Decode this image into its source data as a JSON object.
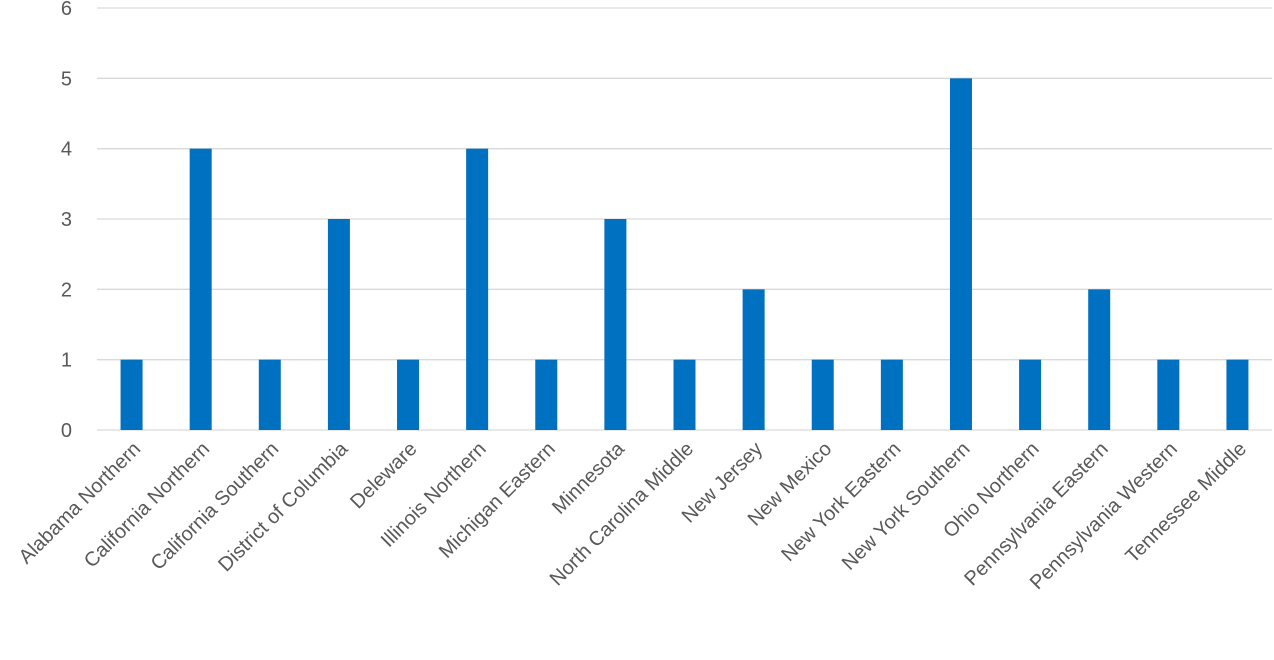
{
  "chart_data": {
    "type": "bar",
    "title": "",
    "xlabel": "",
    "ylabel": "",
    "categories": [
      "Alabama Northern",
      "California Northern",
      "California Southern",
      "District of Columbia",
      "Deleware",
      "Illinois Northern",
      "Michigan Eastern",
      "Minnesota",
      "North Carolina Middle",
      "New Jersey",
      "New Mexico",
      "New York Eastern",
      "New York Southern",
      "Ohio Northern",
      "Pennsylvania Eastern",
      "Pennsylvania Western",
      "Tennessee Middle"
    ],
    "values": [
      1,
      4,
      1,
      3,
      1,
      4,
      1,
      3,
      1,
      2,
      1,
      1,
      5,
      1,
      2,
      1,
      1
    ],
    "ylim": [
      0,
      6
    ],
    "yticks": [
      "0",
      "1",
      "2",
      "3",
      "4",
      "5",
      "6"
    ],
    "grid": true,
    "legend": "none",
    "bar_color": "#0070C0"
  }
}
